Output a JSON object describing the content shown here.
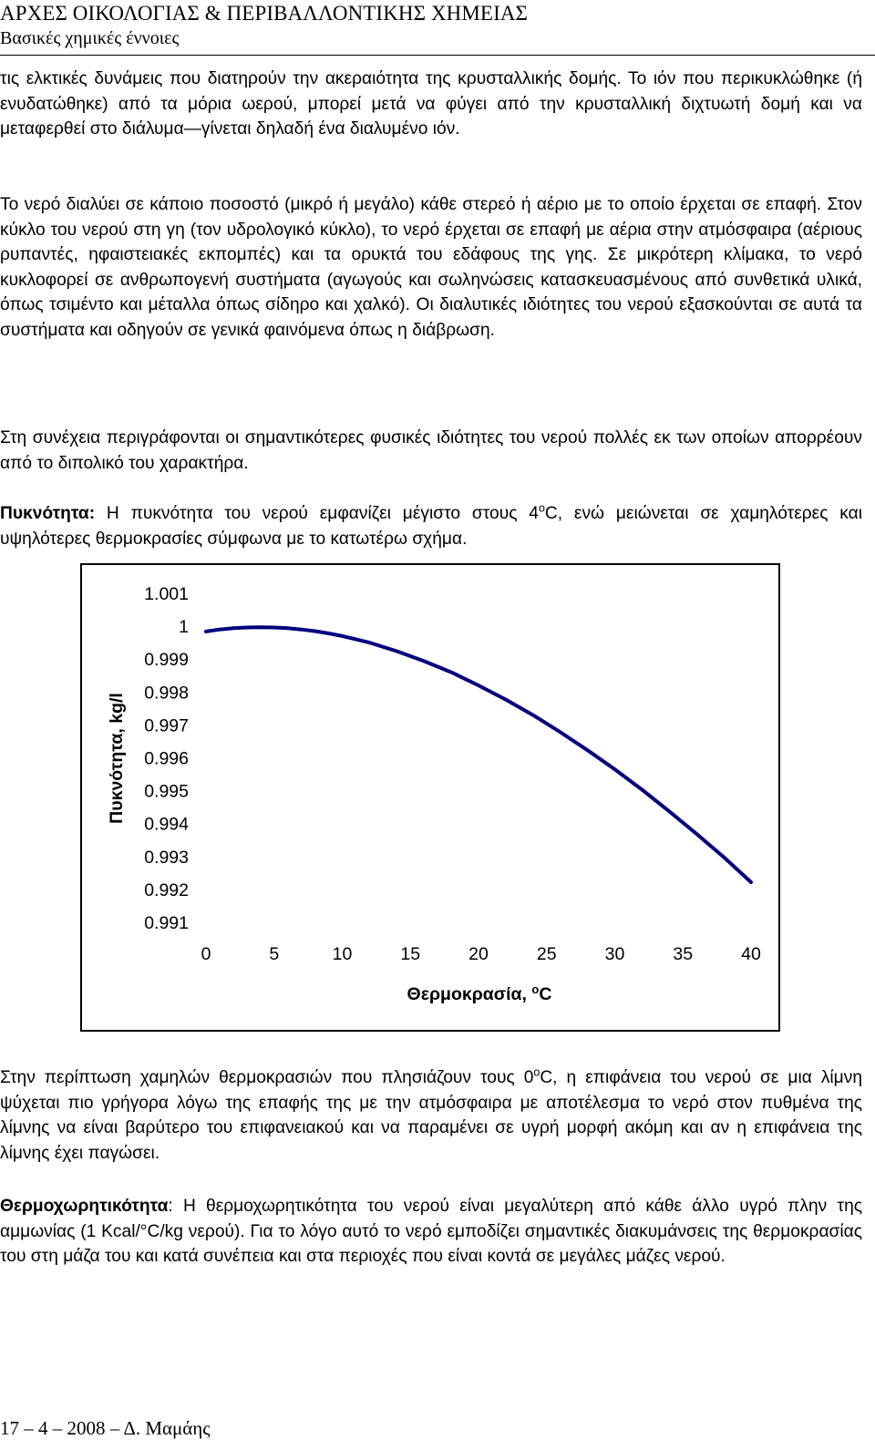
{
  "header": {
    "title": "ΑΡΧΕΣ ΟΙΚΟΛΟΓΙΑΣ & ΠΕΡΙΒΑΛΛΟΝΤΙΚΗΣ ΧΗΜΕΙΑΣ",
    "subtitle": "Βασικές χημικές έννοιες"
  },
  "body": {
    "para1": "τις ελκτικές δυνάμεις που διατηρούν την ακεραιότητα της κρυσταλλικής δομής. Το ιόν που περικυκλώθηκε (ή ενυδατώθηκε) από τα μόρια ωερού, μπορεί μετά να φύγει από την κρυσταλλική διχτυωτή δομή και να μεταφερθεί στο διάλυμα—γίνεται δηλαδή ένα διαλυμένο ιόν.",
    "para2": "Το νερό διαλύει σε κάποιο ποσοστό (μικρό ή μεγάλο) κάθε στερεό ή αέριο με το οποίο έρχεται σε επαφή. Στον κύκλο του νερού στη γη (τον υδρολογικό κύκλο), το νερό έρχεται σε επαφή με αέρια στην ατμόσφαιρα (αέριους ρυπαντές, ηφαιστειακές εκπομπές) και τα ορυκτά του εδάφους της γης. Σε μικρότερη κλίμακα, το νερό κυκλοφορεί σε ανθρωπογενή συστήματα (αγωγούς και σωληνώσεις κατασκευασμένους από συνθετικά υλικά, όπως τσιμέντο και μέταλλα όπως σίδηρο και χαλκό). Οι διαλυτικές ιδιότητες του νερού εξασκούνται σε αυτά τα συστήματα και οδηγούν σε γενικά φαινόμενα όπως η διάβρωση.",
    "para3": "Στη συνέχεια περιγράφονται οι σημαντικότερες φυσικές ιδιότητες του νερού πολλές εκ των οποίων απορρέουν από το διπολικό του χαρακτήρα.",
    "density_term": "Πυκνότητα:",
    "density_text_a": " Η πυκνότητα του νερού εμφανίζει μέγιστο στους 4",
    "density_sup": "ο",
    "density_text_b": "C, ενώ μειώνεται σε χαμηλότερες και υψηλότερες θερμοκρασίες σύμφωνα με το κατωτέρω σχήμα.",
    "para5_a": "Στην περίπτωση χαμηλών θερμοκρασιών που πλησιάζουν τους 0",
    "para5_sup": "ο",
    "para5_b": "C, η επιφάνεια του νερού σε μια λίμνη ψύχεται πιο γρήγορα λόγω της επαφής της με την ατμόσφαιρα με αποτέλεσμα το νερό στον πυθμένα της λίμνης να είναι βαρύτερο του επιφανειακού και να παραμένει σε υγρή μορφή ακόμη και αν η επιφάνεια της λίμνης έχει παγώσει.",
    "heat_term": "Θερμοχωρητικότητα",
    "heat_text": ": Η θερμοχωρητικότητα του νερού είναι μεγαλύτερη από κάθε άλλο υγρό πλην της αμμωνίας (1 Kcal/°C/kg νερού). Για το λόγο αυτό το νερό εμποδίζει σημαντικές διακυμάνσεις της θερμοκρασίας του στη μάζα του και κατά συνέπεια και στα περιοχές που είναι κοντά σε μεγάλες μάζες νερού."
  },
  "chart_data": {
    "type": "line",
    "title": "",
    "xlabel": "Θερμοκρασία, ",
    "xlabel_sup": "o",
    "xlabel_unit": "C",
    "ylabel": "Πυκνότητα, kg/l",
    "x_ticks": [
      "0",
      "5",
      "10",
      "15",
      "20",
      "25",
      "30",
      "35",
      "40"
    ],
    "y_ticks": [
      "1.001",
      "1",
      "0.999",
      "0.998",
      "0.997",
      "0.996",
      "0.995",
      "0.994",
      "0.993",
      "0.992",
      "0.991"
    ],
    "xlim": [
      0,
      40
    ],
    "ylim": [
      0.991,
      1.001
    ],
    "grid": false,
    "line_color": "#00007f",
    "series": [
      {
        "x": [
          0,
          1,
          2,
          3,
          4,
          5,
          6,
          7,
          8,
          9,
          10,
          12,
          14,
          16,
          18,
          20,
          22,
          24,
          26,
          28,
          30,
          32,
          34,
          36,
          38,
          40
        ],
        "values": [
          0.99984,
          0.9999,
          0.99994,
          0.99996,
          0.99997,
          0.99996,
          0.99994,
          0.9999,
          0.99985,
          0.99978,
          0.9997,
          0.9995,
          0.99924,
          0.99894,
          0.9986,
          0.9982,
          0.99777,
          0.9973,
          0.99678,
          0.99623,
          0.99565,
          0.99503,
          0.99437,
          0.99369,
          0.99298,
          0.99222
        ]
      }
    ]
  },
  "footer": {
    "text": "17 – 4 – 2008 – Δ. Μαμάης"
  }
}
